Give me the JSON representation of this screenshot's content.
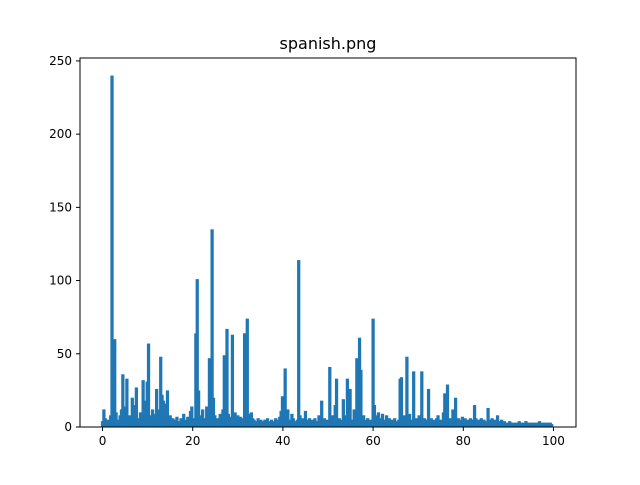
{
  "chart_data": {
    "type": "bar",
    "title": "spanish.png",
    "xlabel": "",
    "ylabel": "",
    "xlim": [
      -5,
      105
    ],
    "ylim": [
      0,
      252
    ],
    "x_ticks": [
      0,
      20,
      40,
      60,
      80,
      100
    ],
    "y_ticks": [
      0,
      50,
      100,
      150,
      200,
      250
    ],
    "bar_width": 0.12,
    "grid": false,
    "legend": "none",
    "color": "#1f77b4",
    "bars": [
      [
        0.0,
        4
      ],
      [
        0.3,
        12
      ],
      [
        0.6,
        6
      ],
      [
        0.9,
        3
      ],
      [
        1.2,
        5
      ],
      [
        1.5,
        4
      ],
      [
        1.8,
        8
      ],
      [
        2.1,
        240
      ],
      [
        2.4,
        3
      ],
      [
        2.7,
        60
      ],
      [
        3.0,
        10
      ],
      [
        3.3,
        3
      ],
      [
        3.6,
        5
      ],
      [
        3.9,
        8
      ],
      [
        4.2,
        12
      ],
      [
        4.5,
        36
      ],
      [
        4.8,
        6
      ],
      [
        5.1,
        14
      ],
      [
        5.4,
        33
      ],
      [
        5.7,
        4
      ],
      [
        6.0,
        8
      ],
      [
        6.3,
        5
      ],
      [
        6.6,
        20
      ],
      [
        6.9,
        3
      ],
      [
        7.2,
        15
      ],
      [
        7.5,
        27
      ],
      [
        7.8,
        6
      ],
      [
        8.1,
        4
      ],
      [
        8.4,
        10
      ],
      [
        8.7,
        5
      ],
      [
        9.0,
        32
      ],
      [
        9.3,
        7
      ],
      [
        9.6,
        18
      ],
      [
        9.9,
        31
      ],
      [
        10.2,
        57
      ],
      [
        10.5,
        8
      ],
      [
        10.8,
        5
      ],
      [
        11.1,
        12
      ],
      [
        11.4,
        4
      ],
      [
        11.7,
        9
      ],
      [
        12.0,
        26
      ],
      [
        12.3,
        6
      ],
      [
        12.6,
        12
      ],
      [
        12.9,
        48
      ],
      [
        13.2,
        22
      ],
      [
        13.5,
        18
      ],
      [
        13.8,
        5
      ],
      [
        14.1,
        16
      ],
      [
        14.4,
        25
      ],
      [
        14.7,
        3
      ],
      [
        15.0,
        8
      ],
      [
        15.3,
        4
      ],
      [
        15.6,
        6
      ],
      [
        15.9,
        3
      ],
      [
        16.2,
        5
      ],
      [
        16.5,
        7
      ],
      [
        16.8,
        4
      ],
      [
        17.1,
        3
      ],
      [
        17.4,
        6
      ],
      [
        17.7,
        4
      ],
      [
        18.0,
        9
      ],
      [
        18.3,
        5
      ],
      [
        18.6,
        3
      ],
      [
        18.9,
        7
      ],
      [
        19.2,
        4
      ],
      [
        19.5,
        11
      ],
      [
        19.8,
        14
      ],
      [
        20.1,
        6
      ],
      [
        20.4,
        5
      ],
      [
        20.7,
        64
      ],
      [
        21.0,
        101
      ],
      [
        21.3,
        25
      ],
      [
        21.6,
        8
      ],
      [
        21.9,
        5
      ],
      [
        22.2,
        12
      ],
      [
        22.5,
        4
      ],
      [
        22.8,
        6
      ],
      [
        23.1,
        14
      ],
      [
        23.4,
        10
      ],
      [
        23.7,
        47
      ],
      [
        24.0,
        5
      ],
      [
        24.3,
        135
      ],
      [
        24.6,
        20
      ],
      [
        24.9,
        8
      ],
      [
        25.2,
        4
      ],
      [
        25.5,
        6
      ],
      [
        25.8,
        3
      ],
      [
        26.1,
        9
      ],
      [
        26.4,
        5
      ],
      [
        26.7,
        12
      ],
      [
        27.0,
        49
      ],
      [
        27.3,
        8
      ],
      [
        27.6,
        67
      ],
      [
        27.9,
        9
      ],
      [
        28.2,
        5
      ],
      [
        28.5,
        7
      ],
      [
        28.8,
        63
      ],
      [
        29.1,
        4
      ],
      [
        29.4,
        10
      ],
      [
        29.7,
        6
      ],
      [
        30.0,
        8
      ],
      [
        30.3,
        4
      ],
      [
        30.6,
        7
      ],
      [
        30.9,
        5
      ],
      [
        31.2,
        6
      ],
      [
        31.5,
        64
      ],
      [
        31.8,
        29
      ],
      [
        32.1,
        74
      ],
      [
        32.4,
        9
      ],
      [
        32.7,
        4
      ],
      [
        33.0,
        10
      ],
      [
        33.3,
        6
      ],
      [
        33.6,
        5
      ],
      [
        33.9,
        3
      ],
      [
        34.2,
        4
      ],
      [
        34.5,
        6
      ],
      [
        34.8,
        3
      ],
      [
        35.1,
        5
      ],
      [
        35.4,
        4
      ],
      [
        35.7,
        3
      ],
      [
        36.0,
        5
      ],
      [
        36.3,
        4
      ],
      [
        36.6,
        6
      ],
      [
        36.9,
        3
      ],
      [
        37.2,
        4
      ],
      [
        37.5,
        5
      ],
      [
        37.8,
        3
      ],
      [
        38.1,
        4
      ],
      [
        38.4,
        6
      ],
      [
        38.7,
        5
      ],
      [
        39.0,
        3
      ],
      [
        39.3,
        7
      ],
      [
        39.6,
        11
      ],
      [
        39.9,
        21
      ],
      [
        40.2,
        8
      ],
      [
        40.5,
        40
      ],
      [
        40.8,
        6
      ],
      [
        41.1,
        12
      ],
      [
        41.4,
        5
      ],
      [
        41.7,
        4
      ],
      [
        42.0,
        9
      ],
      [
        42.3,
        6
      ],
      [
        42.6,
        4
      ],
      [
        42.9,
        3
      ],
      [
        43.2,
        5
      ],
      [
        43.5,
        114
      ],
      [
        43.8,
        8
      ],
      [
        44.1,
        4
      ],
      [
        44.4,
        6
      ],
      [
        44.7,
        3
      ],
      [
        45.0,
        11
      ],
      [
        45.3,
        5
      ],
      [
        45.6,
        4
      ],
      [
        45.9,
        6
      ],
      [
        46.2,
        3
      ],
      [
        46.5,
        5
      ],
      [
        46.8,
        4
      ],
      [
        47.1,
        6
      ],
      [
        47.4,
        3
      ],
      [
        47.7,
        4
      ],
      [
        48.0,
        8
      ],
      [
        48.3,
        5
      ],
      [
        48.6,
        18
      ],
      [
        48.9,
        4
      ],
      [
        49.2,
        6
      ],
      [
        49.5,
        3
      ],
      [
        49.8,
        5
      ],
      [
        50.1,
        4
      ],
      [
        50.4,
        41
      ],
      [
        50.7,
        6
      ],
      [
        51.0,
        8
      ],
      [
        51.3,
        5
      ],
      [
        51.6,
        15
      ],
      [
        51.9,
        33
      ],
      [
        52.2,
        4
      ],
      [
        52.5,
        6
      ],
      [
        52.8,
        3
      ],
      [
        53.1,
        5
      ],
      [
        53.4,
        19
      ],
      [
        53.7,
        4
      ],
      [
        54.0,
        8
      ],
      [
        54.3,
        33
      ],
      [
        54.6,
        6
      ],
      [
        54.9,
        26
      ],
      [
        55.2,
        5
      ],
      [
        55.5,
        4
      ],
      [
        55.8,
        12
      ],
      [
        56.1,
        7
      ],
      [
        56.4,
        47
      ],
      [
        56.7,
        4
      ],
      [
        57.0,
        61
      ],
      [
        57.3,
        39
      ],
      [
        57.6,
        6
      ],
      [
        57.9,
        8
      ],
      [
        58.2,
        5
      ],
      [
        58.5,
        4
      ],
      [
        58.8,
        6
      ],
      [
        59.1,
        3
      ],
      [
        59.4,
        5
      ],
      [
        59.7,
        4
      ],
      [
        60.0,
        74
      ],
      [
        60.3,
        15
      ],
      [
        60.6,
        8
      ],
      [
        60.9,
        5
      ],
      [
        61.2,
        10
      ],
      [
        61.5,
        6
      ],
      [
        61.8,
        4
      ],
      [
        62.1,
        9
      ],
      [
        62.4,
        3
      ],
      [
        62.7,
        5
      ],
      [
        63.0,
        8
      ],
      [
        63.3,
        4
      ],
      [
        63.6,
        6
      ],
      [
        63.9,
        3
      ],
      [
        64.2,
        5
      ],
      [
        64.5,
        4
      ],
      [
        64.8,
        6
      ],
      [
        65.1,
        3
      ],
      [
        65.4,
        4
      ],
      [
        65.7,
        5
      ],
      [
        66.0,
        33
      ],
      [
        66.3,
        34
      ],
      [
        66.6,
        6
      ],
      [
        66.9,
        8
      ],
      [
        67.2,
        5
      ],
      [
        67.5,
        48
      ],
      [
        67.8,
        6
      ],
      [
        68.1,
        9
      ],
      [
        68.4,
        4
      ],
      [
        68.7,
        5
      ],
      [
        69.0,
        38
      ],
      [
        69.3,
        4
      ],
      [
        69.6,
        6
      ],
      [
        69.9,
        3
      ],
      [
        70.2,
        8
      ],
      [
        70.5,
        5
      ],
      [
        70.8,
        38
      ],
      [
        71.1,
        4
      ],
      [
        71.4,
        6
      ],
      [
        71.7,
        3
      ],
      [
        72.0,
        5
      ],
      [
        72.3,
        26
      ],
      [
        72.6,
        4
      ],
      [
        72.9,
        6
      ],
      [
        73.2,
        3
      ],
      [
        73.5,
        5
      ],
      [
        73.8,
        4
      ],
      [
        74.1,
        6
      ],
      [
        74.4,
        8
      ],
      [
        74.7,
        4
      ],
      [
        75.0,
        5
      ],
      [
        75.3,
        3
      ],
      [
        75.6,
        10
      ],
      [
        75.9,
        23
      ],
      [
        76.2,
        8
      ],
      [
        76.5,
        29
      ],
      [
        76.8,
        5
      ],
      [
        77.1,
        6
      ],
      [
        77.4,
        4
      ],
      [
        77.7,
        12
      ],
      [
        78.0,
        5
      ],
      [
        78.3,
        20
      ],
      [
        78.6,
        4
      ],
      [
        78.9,
        6
      ],
      [
        79.2,
        3
      ],
      [
        79.5,
        5
      ],
      [
        79.8,
        7
      ],
      [
        80.1,
        4
      ],
      [
        80.4,
        6
      ],
      [
        80.7,
        3
      ],
      [
        81.0,
        5
      ],
      [
        81.3,
        4
      ],
      [
        81.6,
        6
      ],
      [
        81.9,
        3
      ],
      [
        82.2,
        5
      ],
      [
        82.5,
        15
      ],
      [
        82.8,
        6
      ],
      [
        83.1,
        4
      ],
      [
        83.4,
        5
      ],
      [
        83.7,
        3
      ],
      [
        84.0,
        6
      ],
      [
        84.3,
        4
      ],
      [
        84.6,
        5
      ],
      [
        84.9,
        3
      ],
      [
        85.2,
        4
      ],
      [
        85.5,
        13
      ],
      [
        85.8,
        5
      ],
      [
        86.1,
        4
      ],
      [
        86.4,
        6
      ],
      [
        86.7,
        3
      ],
      [
        87.0,
        5
      ],
      [
        87.3,
        4
      ],
      [
        87.6,
        8
      ],
      [
        87.9,
        4
      ],
      [
        88.2,
        3
      ],
      [
        88.5,
        5
      ],
      [
        88.8,
        3
      ],
      [
        89.1,
        4
      ],
      [
        89.4,
        2
      ],
      [
        89.7,
        3
      ],
      [
        90.0,
        2
      ],
      [
        90.3,
        4
      ],
      [
        90.6,
        3
      ],
      [
        90.9,
        2
      ],
      [
        91.2,
        3
      ],
      [
        91.5,
        2
      ],
      [
        91.8,
        3
      ],
      [
        92.1,
        2
      ],
      [
        92.4,
        4
      ],
      [
        92.7,
        2
      ],
      [
        93.0,
        3
      ],
      [
        93.3,
        2
      ],
      [
        93.6,
        3
      ],
      [
        93.9,
        4
      ],
      [
        94.2,
        2
      ],
      [
        94.5,
        3
      ],
      [
        94.8,
        2
      ],
      [
        95.1,
        3
      ],
      [
        95.4,
        2
      ],
      [
        95.7,
        3
      ],
      [
        96.0,
        2
      ],
      [
        96.3,
        3
      ],
      [
        96.6,
        2
      ],
      [
        96.9,
        4
      ],
      [
        97.2,
        2
      ],
      [
        97.5,
        3
      ],
      [
        97.8,
        2
      ],
      [
        98.1,
        3
      ],
      [
        98.4,
        2
      ],
      [
        98.7,
        3
      ],
      [
        99.0,
        2
      ],
      [
        99.3,
        3
      ],
      [
        99.6,
        2
      ]
    ]
  }
}
